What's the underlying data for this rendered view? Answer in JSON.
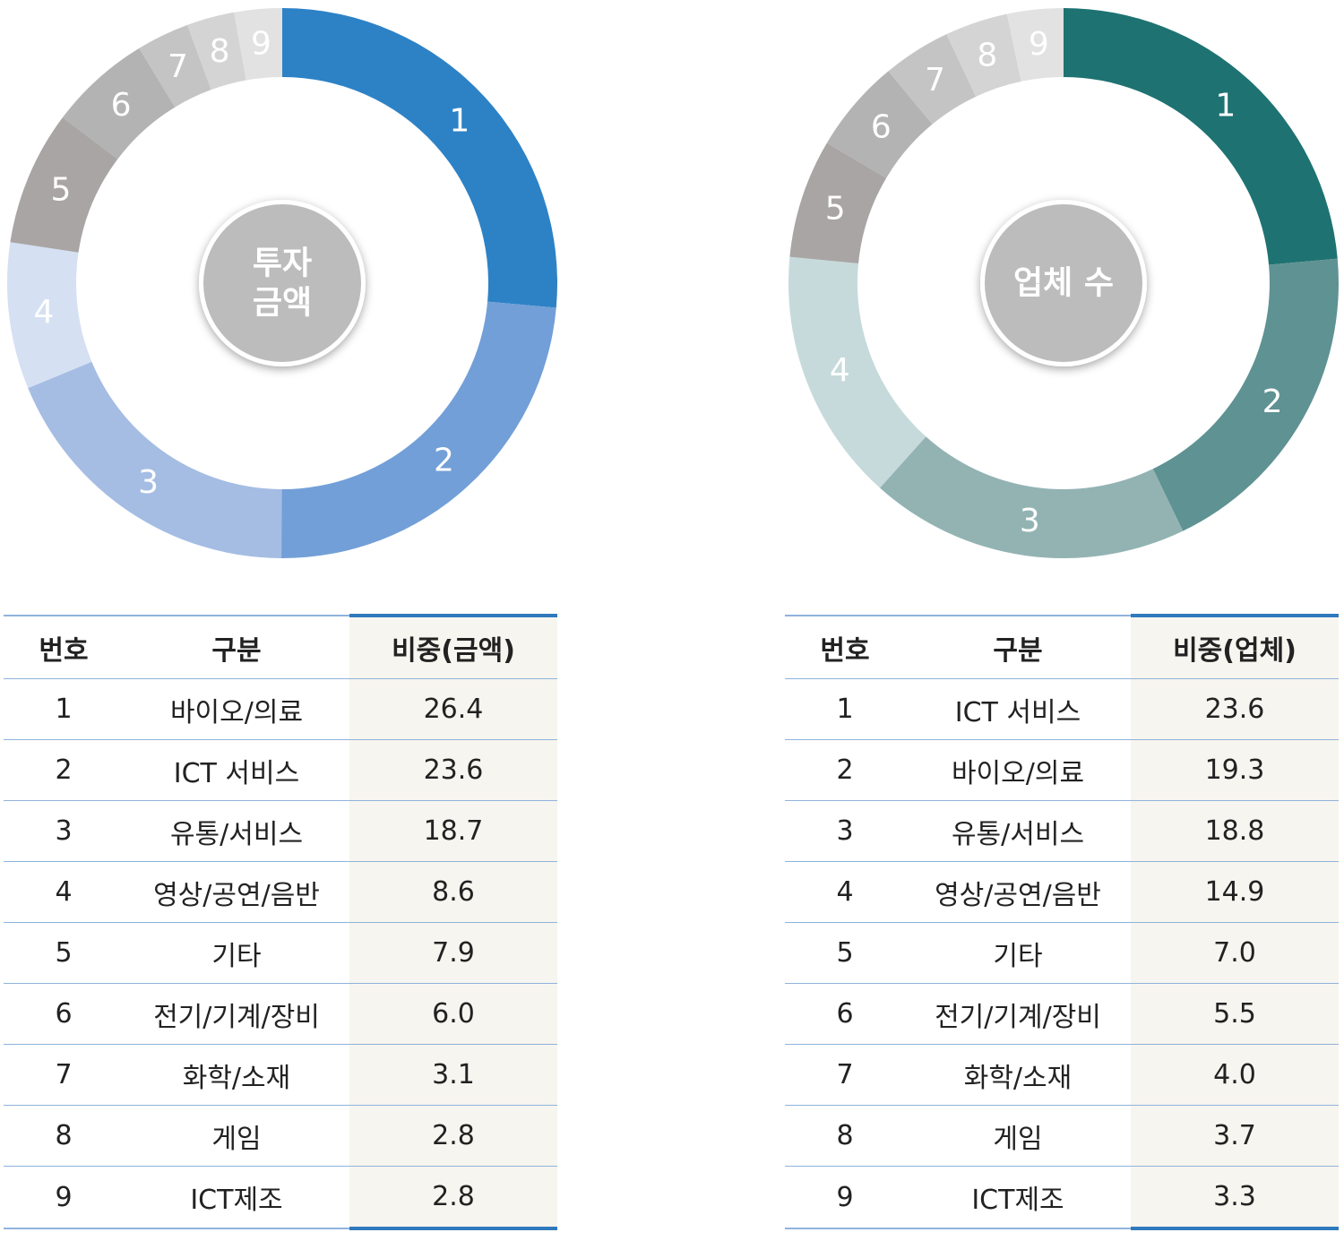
{
  "chart_data": [
    {
      "type": "pie",
      "donut": true,
      "center_label": [
        "투자",
        "금액"
      ],
      "start": "top, clockwise",
      "slices": [
        {
          "label": "1",
          "category": "바이오/의료",
          "value": 26.4,
          "color": "#2d82c6"
        },
        {
          "label": "2",
          "category": "ICT 서비스",
          "value": 23.6,
          "color": "#729fd7"
        },
        {
          "label": "3",
          "category": "유통/서비스",
          "value": 18.7,
          "color": "#a5bde3"
        },
        {
          "label": "4",
          "category": "영상/공연/음반",
          "value": 8.6,
          "color": "#d5e0f3"
        },
        {
          "label": "5",
          "category": "기타",
          "value": 7.9,
          "color": "#a9a5a4"
        },
        {
          "label": "6",
          "category": "전기/기계/장비",
          "value": 6.0,
          "color": "#b3b3b3"
        },
        {
          "label": "7",
          "category": "화학/소재",
          "value": 3.1,
          "color": "#c4c4c4"
        },
        {
          "label": "8",
          "category": "게임",
          "value": 2.8,
          "color": "#d4d4d4"
        },
        {
          "label": "9",
          "category": "ICT제조",
          "value": 2.8,
          "color": "#e2e2e2"
        }
      ]
    },
    {
      "type": "pie",
      "donut": true,
      "center_label": [
        "업체 수"
      ],
      "start": "top, clockwise",
      "slices": [
        {
          "label": "1",
          "category": "ICT 서비스",
          "value": 23.6,
          "color": "#1e7272"
        },
        {
          "label": "2",
          "category": "바이오/의료",
          "value": 19.3,
          "color": "#5f9292"
        },
        {
          "label": "3",
          "category": "유통/서비스",
          "value": 18.8,
          "color": "#93b3b3"
        },
        {
          "label": "4",
          "category": "영상/공연/음반",
          "value": 14.9,
          "color": "#c7dadb"
        },
        {
          "label": "5",
          "category": "기타",
          "value": 7.0,
          "color": "#a9a5a4"
        },
        {
          "label": "6",
          "category": "전기/기계/장비",
          "value": 5.5,
          "color": "#b3b3b3"
        },
        {
          "label": "7",
          "category": "화학/소재",
          "value": 4.0,
          "color": "#c4c4c4"
        },
        {
          "label": "8",
          "category": "게임",
          "value": 3.7,
          "color": "#d4d4d4"
        },
        {
          "label": "9",
          "category": "ICT제조",
          "value": 3.3,
          "color": "#e2e2e2"
        }
      ]
    }
  ],
  "tables": [
    {
      "headers": [
        "번호",
        "구분",
        "비중(금액)"
      ],
      "rows": [
        [
          "1",
          "바이오/의료",
          "26.4"
        ],
        [
          "2",
          "ICT 서비스",
          "23.6"
        ],
        [
          "3",
          "유통/서비스",
          "18.7"
        ],
        [
          "4",
          "영상/공연/음반",
          "8.6"
        ],
        [
          "5",
          "기타",
          "7.9"
        ],
        [
          "6",
          "전기/기계/장비",
          "6.0"
        ],
        [
          "7",
          "화학/소재",
          "3.1"
        ],
        [
          "8",
          "게임",
          "2.8"
        ],
        [
          "9",
          "ICT제조",
          "2.8"
        ]
      ]
    },
    {
      "headers": [
        "번호",
        "구분",
        "비중(업체)"
      ],
      "rows": [
        [
          "1",
          "ICT 서비스",
          "23.6"
        ],
        [
          "2",
          "바이오/의료",
          "19.3"
        ],
        [
          "3",
          "유통/서비스",
          "18.8"
        ],
        [
          "4",
          "영상/공연/음반",
          "14.9"
        ],
        [
          "5",
          "기타",
          "7.0"
        ],
        [
          "6",
          "전기/기계/장비",
          "5.5"
        ],
        [
          "7",
          "화학/소재",
          "4.0"
        ],
        [
          "8",
          "게임",
          "3.7"
        ],
        [
          "9",
          "ICT제조",
          "3.3"
        ]
      ]
    }
  ]
}
